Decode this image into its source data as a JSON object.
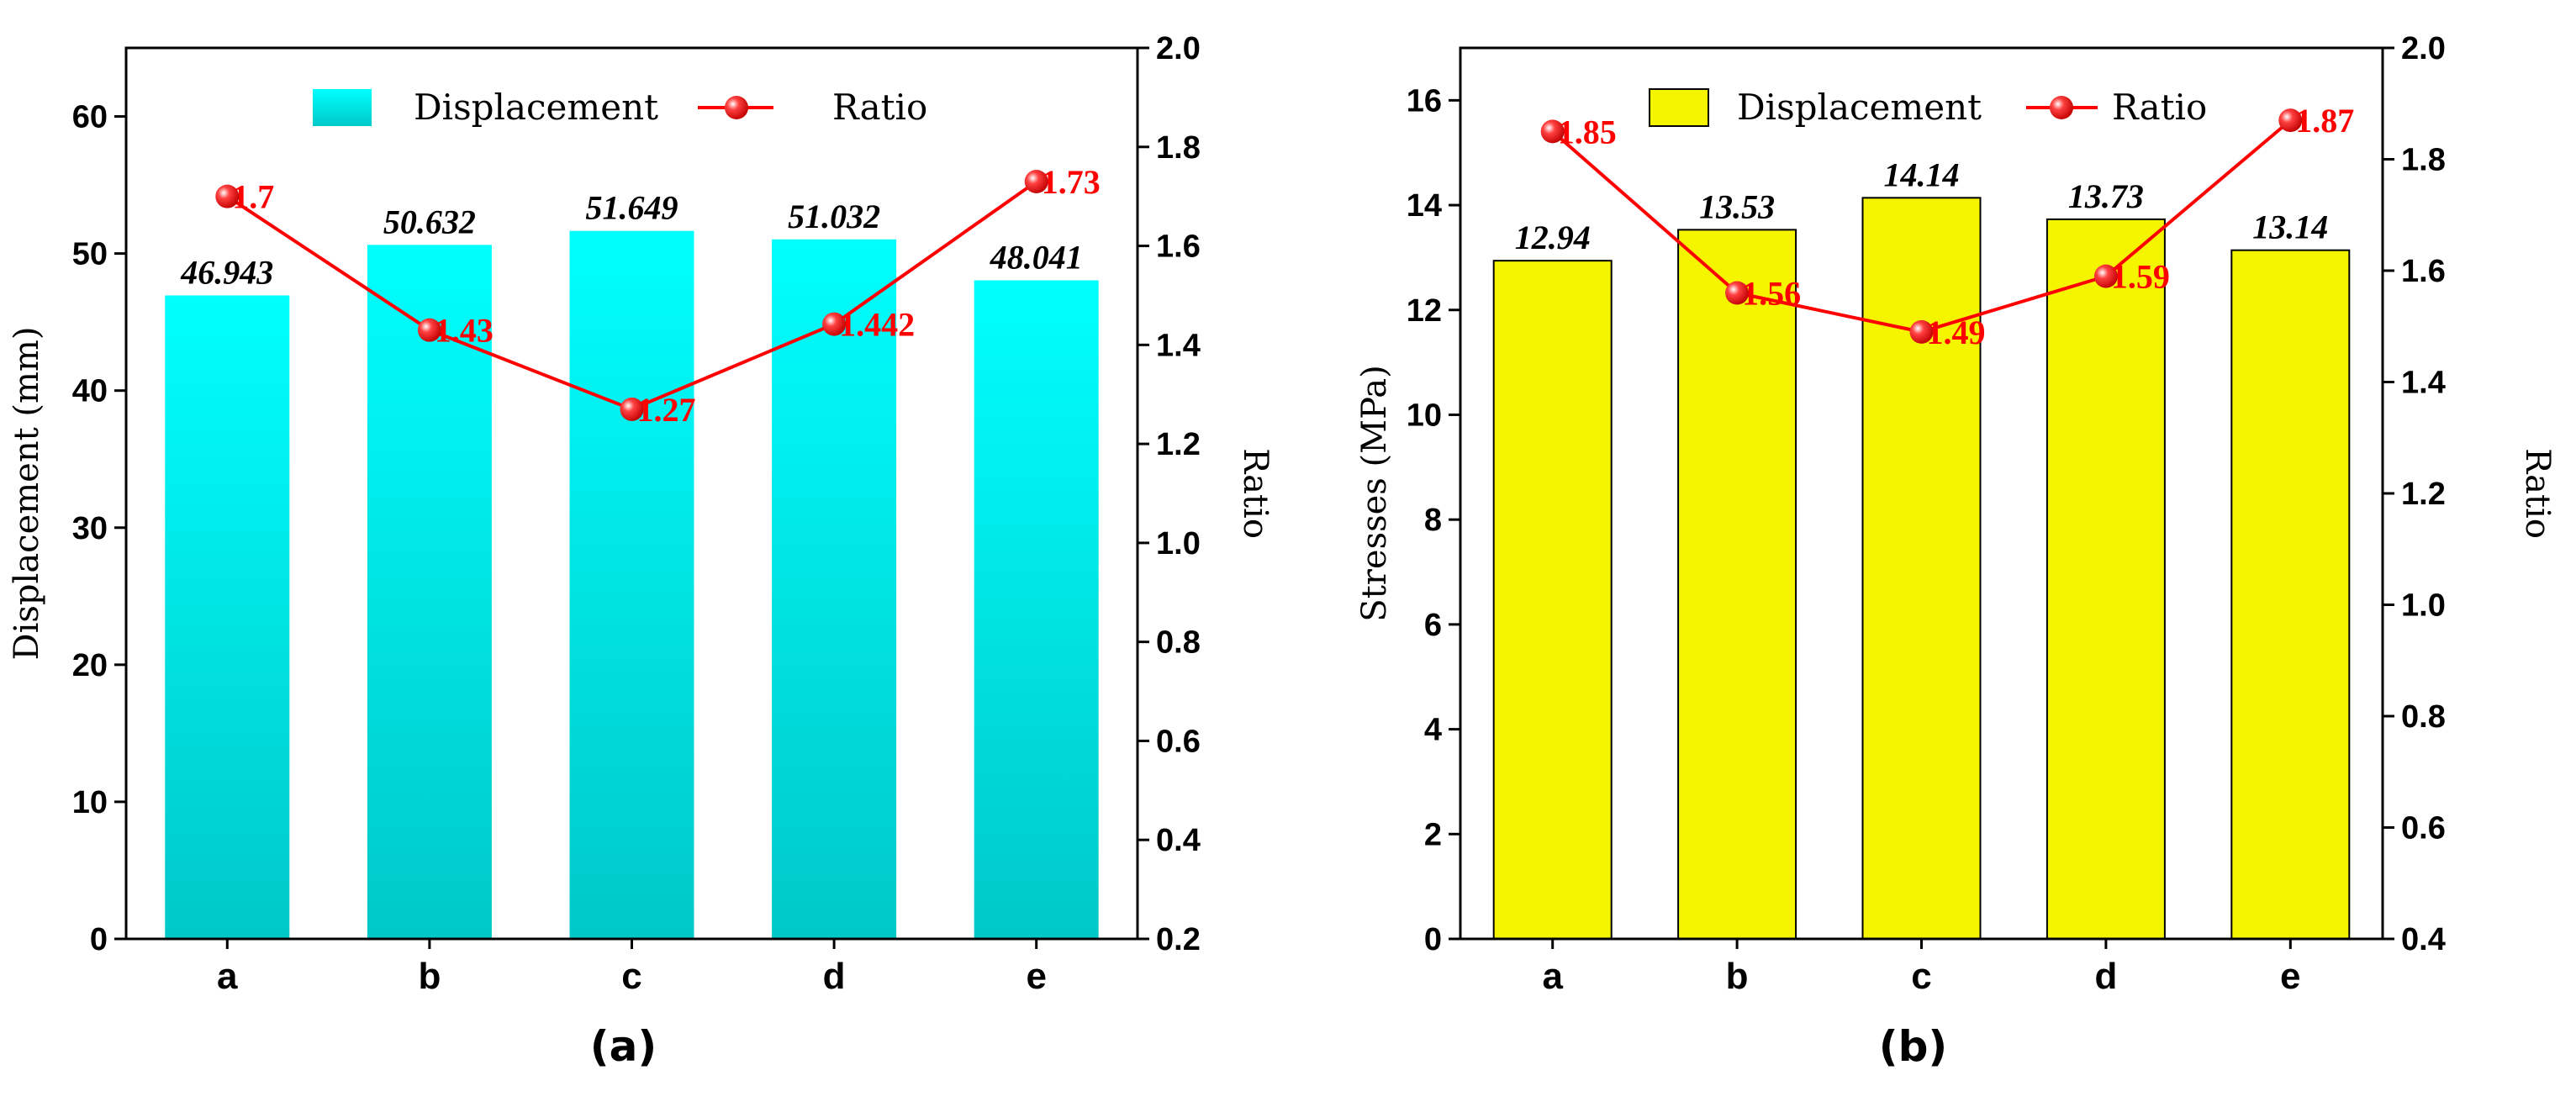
{
  "chart_data": [
    {
      "type": "bar+line",
      "panel_label": "(a)",
      "categories": [
        "a",
        "b",
        "c",
        "d",
        "e"
      ],
      "bar_series": {
        "name": "Displacement",
        "values": [
          46.943,
          50.632,
          51.649,
          51.032,
          48.041
        ],
        "labels": [
          "46.943",
          "50.632",
          "51.649",
          "51.032",
          "48.041"
        ],
        "color": "#00e5e5"
      },
      "line_series": {
        "name": "Ratio",
        "values": [
          1.7,
          1.43,
          1.27,
          1.442,
          1.73
        ],
        "labels": [
          "1.7",
          "1.43",
          "1.27",
          "1.442",
          "1.73"
        ],
        "color": "#ff0000"
      },
      "ylabel": "Displacement (mm)",
      "y2label": "Ratio",
      "ylim": [
        0,
        65
      ],
      "yticks": [
        "0",
        "10",
        "20",
        "30",
        "40",
        "50",
        "60"
      ],
      "y2lim": [
        0.2,
        2.0
      ],
      "y2ticks": [
        "0.2",
        "0.4",
        "0.6",
        "0.8",
        "1.0",
        "1.2",
        "1.4",
        "1.6",
        "1.8",
        "2.0"
      ],
      "legend_position": "top-center"
    },
    {
      "type": "bar+line",
      "panel_label": "(b)",
      "categories": [
        "a",
        "b",
        "c",
        "d",
        "e"
      ],
      "bar_series": {
        "name": "Displacement",
        "values": [
          12.94,
          13.53,
          14.14,
          13.73,
          13.14
        ],
        "labels": [
          "12.94",
          "13.53",
          "14.14",
          "13.73",
          "13.14"
        ],
        "color": "#f5f500"
      },
      "line_series": {
        "name": "Ratio",
        "values": [
          1.85,
          1.56,
          1.49,
          1.59,
          1.87
        ],
        "labels": [
          "1.85",
          "1.56",
          "1.49",
          "1.59",
          "1.87"
        ],
        "color": "#ff0000"
      },
      "ylabel": "Stresses (MPa)",
      "y2label": "Ratio",
      "ylim": [
        0,
        17
      ],
      "yticks": [
        "0",
        "2",
        "4",
        "6",
        "8",
        "10",
        "12",
        "14",
        "16"
      ],
      "y2lim": [
        0.4,
        2.0
      ],
      "y2ticks": [
        "0.4",
        "0.6",
        "0.8",
        "1.0",
        "1.2",
        "1.4",
        "1.6",
        "1.8",
        "2.0"
      ],
      "legend_position": "top-center"
    }
  ]
}
